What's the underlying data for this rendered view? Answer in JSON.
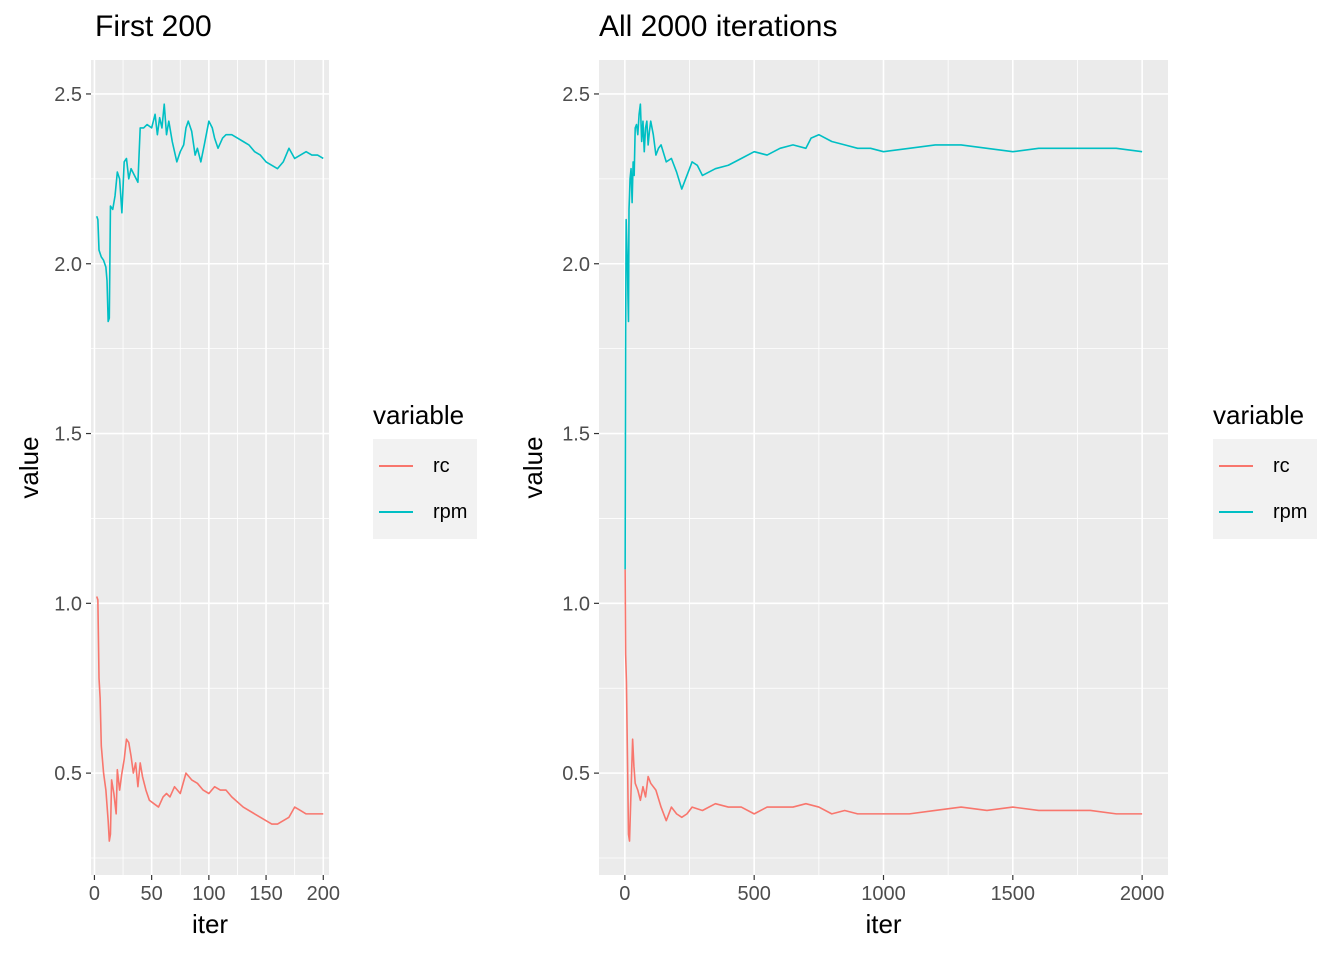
{
  "colors": {
    "rc": "#F8766D",
    "rpm": "#00BFC4",
    "panel": "#EBEBEB",
    "grid": "#FFFFFF"
  },
  "legend": {
    "title": "variable",
    "items": [
      {
        "label": "rc",
        "color": "#F8766D"
      },
      {
        "label": "rpm",
        "color": "#00BFC4"
      }
    ]
  },
  "chart_data": [
    {
      "type": "line",
      "title": "First 200",
      "xlabel": "iter",
      "ylabel": "value",
      "xlim": [
        -3,
        205
      ],
      "ylim": [
        0.2,
        2.6
      ],
      "xticks": [
        0,
        50,
        100,
        150,
        200
      ],
      "yticks": [
        0.5,
        1.0,
        1.5,
        2.0,
        2.5
      ],
      "ytick_labels": [
        "0.5",
        "1.0",
        "1.5",
        "2.0",
        "2.5"
      ],
      "grid": true,
      "legend_position": "right",
      "series": [
        {
          "name": "rc",
          "color": "#F8766D",
          "x": [
            2,
            3,
            4,
            5,
            6,
            8,
            10,
            12,
            13,
            14,
            15,
            17,
            19,
            20,
            22,
            24,
            26,
            28,
            30,
            32,
            34,
            36,
            38,
            40,
            42,
            45,
            48,
            52,
            56,
            60,
            63,
            66,
            70,
            75,
            80,
            85,
            90,
            95,
            100,
            105,
            110,
            115,
            120,
            130,
            140,
            150,
            155,
            160,
            165,
            170,
            175,
            180,
            185,
            190,
            195,
            200
          ],
          "y": [
            1.02,
            1.01,
            0.78,
            0.72,
            0.58,
            0.5,
            0.45,
            0.36,
            0.3,
            0.32,
            0.48,
            0.44,
            0.38,
            0.51,
            0.45,
            0.5,
            0.54,
            0.6,
            0.59,
            0.55,
            0.5,
            0.53,
            0.46,
            0.53,
            0.49,
            0.45,
            0.42,
            0.41,
            0.4,
            0.43,
            0.44,
            0.43,
            0.46,
            0.44,
            0.5,
            0.48,
            0.47,
            0.45,
            0.44,
            0.46,
            0.45,
            0.45,
            0.43,
            0.4,
            0.38,
            0.36,
            0.35,
            0.35,
            0.36,
            0.37,
            0.4,
            0.39,
            0.38,
            0.38,
            0.38,
            0.38
          ]
        },
        {
          "name": "rpm",
          "color": "#00BFC4",
          "x": [
            2,
            3,
            4,
            6,
            8,
            10,
            11,
            12,
            13,
            14,
            16,
            18,
            20,
            22,
            24,
            26,
            28,
            30,
            32,
            35,
            38,
            40,
            43,
            46,
            50,
            53,
            55,
            57,
            59,
            61,
            63,
            65,
            68,
            70,
            72,
            75,
            78,
            80,
            82,
            85,
            88,
            90,
            93,
            96,
            100,
            103,
            105,
            108,
            112,
            115,
            120,
            125,
            130,
            135,
            140,
            145,
            150,
            155,
            160,
            165,
            170,
            175,
            180,
            185,
            190,
            195,
            200
          ],
          "y": [
            2.14,
            2.13,
            2.04,
            2.02,
            2.01,
            1.99,
            1.95,
            1.83,
            1.84,
            2.17,
            2.16,
            2.2,
            2.27,
            2.25,
            2.15,
            2.3,
            2.31,
            2.25,
            2.28,
            2.26,
            2.24,
            2.4,
            2.4,
            2.41,
            2.4,
            2.44,
            2.38,
            2.43,
            2.4,
            2.47,
            2.38,
            2.42,
            2.36,
            2.33,
            2.3,
            2.33,
            2.35,
            2.4,
            2.42,
            2.39,
            2.32,
            2.34,
            2.3,
            2.35,
            2.42,
            2.4,
            2.37,
            2.34,
            2.37,
            2.38,
            2.38,
            2.37,
            2.36,
            2.35,
            2.33,
            2.32,
            2.3,
            2.29,
            2.28,
            2.3,
            2.34,
            2.31,
            2.32,
            2.33,
            2.32,
            2.32,
            2.31
          ]
        }
      ]
    },
    {
      "type": "line",
      "title": "All 2000 iterations",
      "xlabel": "iter",
      "ylabel": "value",
      "xlim": [
        -100,
        2100
      ],
      "ylim": [
        0.2,
        2.6
      ],
      "xticks": [
        0,
        500,
        1000,
        1500,
        2000
      ],
      "yticks": [
        0.5,
        1.0,
        1.5,
        2.0,
        2.5
      ],
      "ytick_labels": [
        "0.5",
        "1.0",
        "1.5",
        "2.0",
        "2.5"
      ],
      "grid": true,
      "legend_position": "right",
      "series": [
        {
          "name": "rc",
          "color": "#F8766D",
          "x": [
            1,
            3,
            6,
            10,
            14,
            18,
            22,
            26,
            30,
            35,
            40,
            50,
            60,
            70,
            80,
            90,
            100,
            120,
            140,
            160,
            180,
            200,
            220,
            240,
            260,
            300,
            350,
            400,
            450,
            500,
            550,
            600,
            650,
            700,
            750,
            800,
            850,
            900,
            950,
            1000,
            1100,
            1200,
            1300,
            1400,
            1500,
            1600,
            1700,
            1800,
            1900,
            2000
          ],
          "y": [
            1.1,
            0.85,
            0.77,
            0.55,
            0.32,
            0.3,
            0.4,
            0.5,
            0.6,
            0.52,
            0.47,
            0.45,
            0.42,
            0.46,
            0.43,
            0.49,
            0.47,
            0.45,
            0.4,
            0.36,
            0.4,
            0.38,
            0.37,
            0.38,
            0.4,
            0.39,
            0.41,
            0.4,
            0.4,
            0.38,
            0.4,
            0.4,
            0.4,
            0.41,
            0.4,
            0.38,
            0.39,
            0.38,
            0.38,
            0.38,
            0.38,
            0.39,
            0.4,
            0.39,
            0.4,
            0.39,
            0.39,
            0.39,
            0.38,
            0.38
          ]
        },
        {
          "name": "rpm",
          "color": "#00BFC4",
          "x": [
            1,
            3,
            5,
            8,
            10,
            12,
            14,
            16,
            18,
            20,
            24,
            28,
            32,
            36,
            40,
            45,
            50,
            55,
            60,
            65,
            70,
            75,
            80,
            85,
            90,
            95,
            100,
            110,
            120,
            130,
            140,
            160,
            180,
            200,
            220,
            240,
            260,
            280,
            300,
            350,
            400,
            450,
            500,
            550,
            600,
            650,
            700,
            720,
            750,
            800,
            850,
            900,
            950,
            1000,
            1100,
            1200,
            1300,
            1400,
            1500,
            1600,
            1700,
            1800,
            1900,
            2000
          ],
          "y": [
            1.1,
            1.8,
            2.13,
            2.05,
            2.0,
            1.9,
            1.83,
            2.16,
            2.2,
            2.25,
            2.28,
            2.18,
            2.3,
            2.26,
            2.4,
            2.41,
            2.38,
            2.44,
            2.47,
            2.36,
            2.42,
            2.33,
            2.4,
            2.42,
            2.35,
            2.39,
            2.42,
            2.38,
            2.32,
            2.34,
            2.35,
            2.3,
            2.31,
            2.27,
            2.22,
            2.26,
            2.3,
            2.29,
            2.26,
            2.28,
            2.29,
            2.31,
            2.33,
            2.32,
            2.34,
            2.35,
            2.34,
            2.37,
            2.38,
            2.36,
            2.35,
            2.34,
            2.34,
            2.33,
            2.34,
            2.35,
            2.35,
            2.34,
            2.33,
            2.34,
            2.34,
            2.34,
            2.34,
            2.33
          ]
        }
      ]
    }
  ]
}
